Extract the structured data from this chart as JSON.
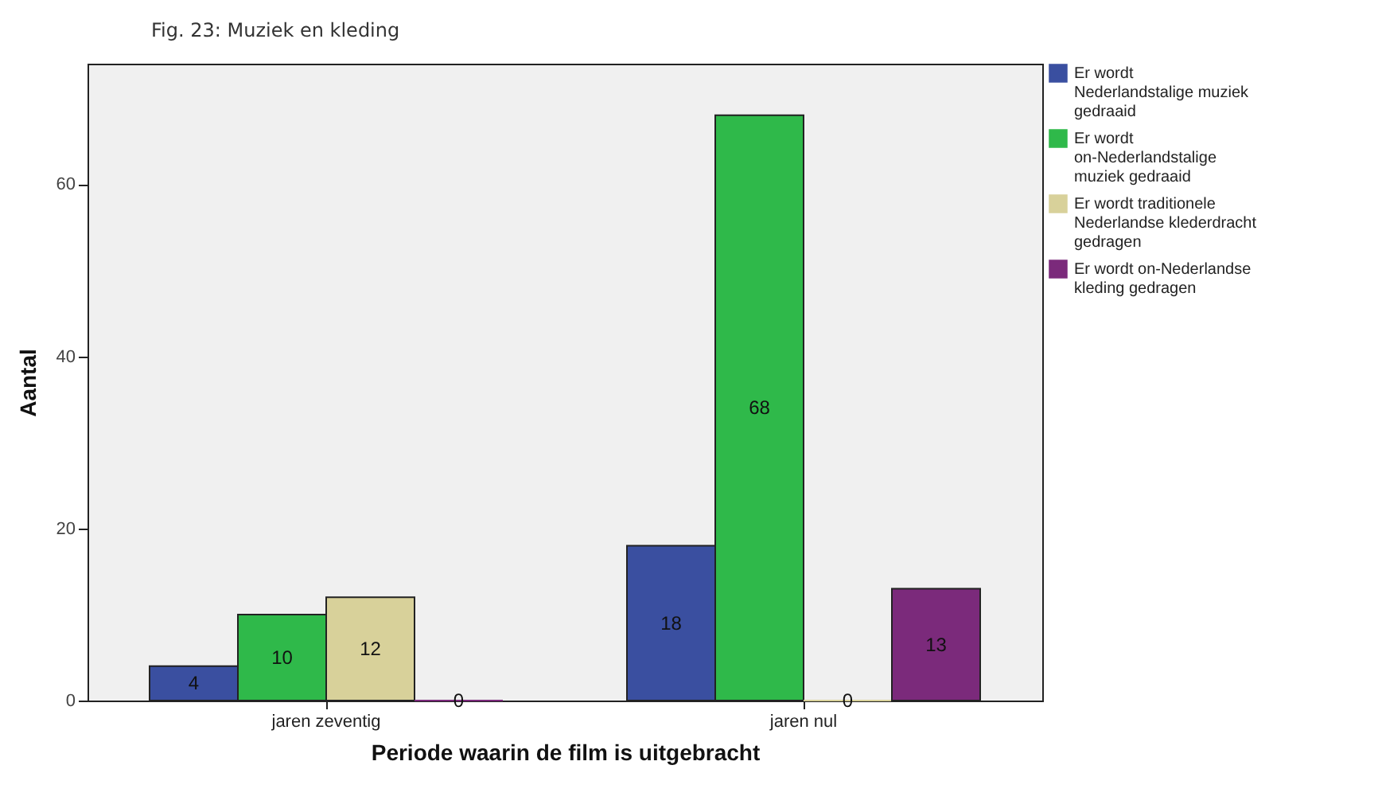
{
  "chart_data": {
    "type": "bar",
    "title": "Fig. 23: Muziek en kleding",
    "xlabel": "Periode waarin de film is uitgebracht",
    "ylabel": "Aantal",
    "categories": [
      "jaren zeventig",
      "jaren nul"
    ],
    "series": [
      {
        "name": "Er wordt Nederlandstalige muziek gedraaid",
        "color": "#3a4fa0",
        "values": [
          4,
          18
        ]
      },
      {
        "name": "Er wordt on-Nederlandstalige muziek gedraaid",
        "color": "#2fb94a",
        "values": [
          10,
          68
        ]
      },
      {
        "name": "Er wordt traditionele Nederlandse klederdracht gedragen",
        "color": "#d8d19a",
        "values": [
          12,
          0
        ]
      },
      {
        "name": "Er wordt on-Nederlandse kleding gedragen",
        "color": "#7b2a7b",
        "values": [
          0,
          13
        ]
      }
    ],
    "ylim": [
      0,
      74
    ],
    "yticks": [
      0,
      20,
      40,
      60
    ],
    "grid": false,
    "legend": "right",
    "data_labels": true
  }
}
